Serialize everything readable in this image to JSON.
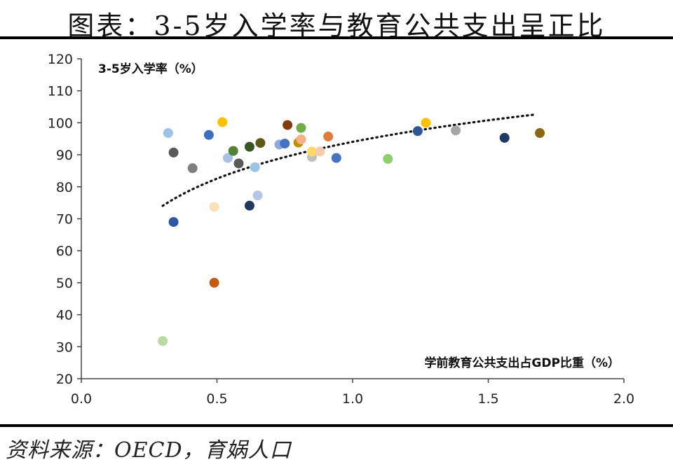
{
  "header": {
    "title": "图表：3-5岁入学率与教育公共支出呈正比"
  },
  "footer": {
    "source": "资料来源：OECD，育娲人口"
  },
  "chart_data": {
    "type": "scatter",
    "title": "",
    "xlabel": "学前教育公共支出占GDP比重（%）",
    "ylabel": "3-5岁入学率（%）",
    "xlim": [
      0.0,
      2.0
    ],
    "ylim": [
      20,
      120
    ],
    "x_ticks": [
      "0.0",
      "0.5",
      "1.0",
      "1.5",
      "2.0"
    ],
    "y_ticks": [
      "20",
      "30",
      "40",
      "50",
      "60",
      "70",
      "80",
      "90",
      "100",
      "110",
      "120"
    ],
    "grid": false,
    "legend": "none",
    "trendline": {
      "type": "logarithmic",
      "style": "dotted",
      "color": "#111111",
      "x_range": [
        0.3,
        1.67
      ]
    },
    "points": [
      {
        "x": 0.32,
        "y": 96.8,
        "color": "#9dc3e6"
      },
      {
        "x": 0.34,
        "y": 90.7,
        "color": "#595959"
      },
      {
        "x": 0.34,
        "y": 69.0,
        "color": "#2e56a6"
      },
      {
        "x": 0.3,
        "y": 31.8,
        "color": "#b7dba0"
      },
      {
        "x": 0.41,
        "y": 85.8,
        "color": "#7f7f7f"
      },
      {
        "x": 0.47,
        "y": 96.2,
        "color": "#3a6fc4"
      },
      {
        "x": 0.49,
        "y": 73.7,
        "color": "#fbe0b8"
      },
      {
        "x": 0.49,
        "y": 50.0,
        "color": "#c55a11"
      },
      {
        "x": 0.52,
        "y": 100.2,
        "color": "#ffc000"
      },
      {
        "x": 0.54,
        "y": 89.0,
        "color": "#a9c1e8"
      },
      {
        "x": 0.56,
        "y": 91.2,
        "color": "#548235"
      },
      {
        "x": 0.58,
        "y": 87.3,
        "color": "#595959"
      },
      {
        "x": 0.62,
        "y": 92.5,
        "color": "#375623"
      },
      {
        "x": 0.62,
        "y": 74.1,
        "color": "#1f3864"
      },
      {
        "x": 0.64,
        "y": 86.1,
        "color": "#9dc3e6"
      },
      {
        "x": 0.65,
        "y": 77.3,
        "color": "#b4c7e7"
      },
      {
        "x": 0.66,
        "y": 93.7,
        "color": "#5b5a1b"
      },
      {
        "x": 0.73,
        "y": 93.2,
        "color": "#8faadc"
      },
      {
        "x": 0.75,
        "y": 93.5,
        "color": "#4472c4"
      },
      {
        "x": 0.76,
        "y": 99.3,
        "color": "#843c0c"
      },
      {
        "x": 0.8,
        "y": 93.8,
        "color": "#bf9000"
      },
      {
        "x": 0.81,
        "y": 94.8,
        "color": "#f4b183"
      },
      {
        "x": 0.81,
        "y": 98.4,
        "color": "#70ad47"
      },
      {
        "x": 0.85,
        "y": 89.3,
        "color": "#bfbfbf"
      },
      {
        "x": 0.85,
        "y": 91.0,
        "color": "#ffd966"
      },
      {
        "x": 0.88,
        "y": 91.0,
        "color": "#f8cbad"
      },
      {
        "x": 0.91,
        "y": 95.7,
        "color": "#e07b39"
      },
      {
        "x": 0.94,
        "y": 89.0,
        "color": "#4472c4"
      },
      {
        "x": 1.13,
        "y": 88.7,
        "color": "#8fcf6b"
      },
      {
        "x": 1.24,
        "y": 97.4,
        "color": "#2f5597"
      },
      {
        "x": 1.27,
        "y": 100.0,
        "color": "#ffc000"
      },
      {
        "x": 1.38,
        "y": 97.6,
        "color": "#a6a6a6"
      },
      {
        "x": 1.56,
        "y": 95.3,
        "color": "#203864"
      },
      {
        "x": 1.69,
        "y": 96.8,
        "color": "#8b6914"
      }
    ]
  }
}
